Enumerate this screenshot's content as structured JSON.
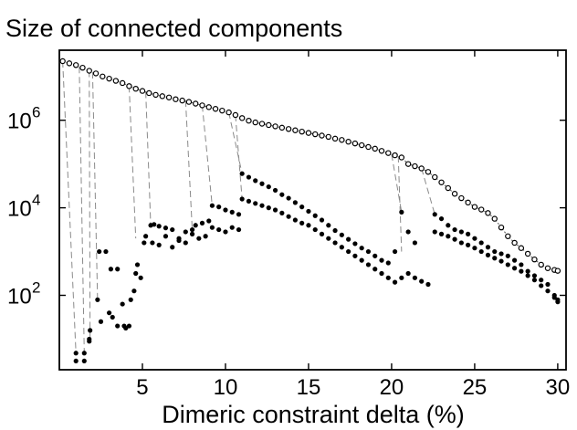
{
  "chart_data": {
    "type": "scatter",
    "title": "Size of connected components",
    "xlabel": "Dimeric constraint delta (%)",
    "ylabel": "",
    "xlim": [
      0,
      30.5
    ],
    "yscale": "log",
    "ylim_log10": [
      0.3,
      7.6
    ],
    "x_ticks": [
      5,
      10,
      15,
      20,
      25,
      30
    ],
    "x_tick_labels": [
      "5",
      "10",
      "15",
      "20",
      "25",
      "30"
    ],
    "y_ticks": [
      {
        "base": "10",
        "exp": "2",
        "log10": 2
      },
      {
        "base": "10",
        "exp": "4",
        "log10": 4
      },
      {
        "base": "10",
        "exp": "6",
        "log10": 6
      }
    ],
    "grid": false,
    "series": [
      {
        "role": "largest",
        "style": "open",
        "points": [
          [
            0.2,
            7.35
          ],
          [
            0.6,
            7.3
          ],
          [
            1.0,
            7.26
          ],
          [
            1.4,
            7.2
          ],
          [
            1.8,
            7.13
          ],
          [
            2.2,
            7.07
          ],
          [
            2.6,
            7.0
          ],
          [
            3.0,
            6.95
          ],
          [
            3.4,
            6.9
          ],
          [
            3.8,
            6.85
          ],
          [
            4.2,
            6.78
          ],
          [
            4.6,
            6.72
          ],
          [
            5.0,
            6.67
          ],
          [
            5.4,
            6.62
          ],
          [
            5.8,
            6.58
          ],
          [
            6.2,
            6.55
          ],
          [
            6.6,
            6.52
          ],
          [
            7.0,
            6.48
          ],
          [
            7.4,
            6.45
          ],
          [
            7.8,
            6.42
          ],
          [
            8.2,
            6.38
          ],
          [
            8.6,
            6.34
          ],
          [
            9.0,
            6.3
          ],
          [
            9.4,
            6.26
          ],
          [
            9.8,
            6.22
          ],
          [
            10.2,
            6.18
          ],
          [
            10.6,
            6.12
          ],
          [
            11.0,
            6.05
          ],
          [
            11.4,
            5.99
          ],
          [
            11.8,
            5.95
          ],
          [
            12.2,
            5.92
          ],
          [
            12.6,
            5.89
          ],
          [
            13.0,
            5.86
          ],
          [
            13.4,
            5.83
          ],
          [
            13.8,
            5.8
          ],
          [
            14.2,
            5.77
          ],
          [
            14.6,
            5.74
          ],
          [
            15.0,
            5.71
          ],
          [
            15.4,
            5.68
          ],
          [
            15.8,
            5.65
          ],
          [
            16.2,
            5.62
          ],
          [
            16.6,
            5.58
          ],
          [
            17.0,
            5.55
          ],
          [
            17.4,
            5.51
          ],
          [
            17.8,
            5.47
          ],
          [
            18.2,
            5.43
          ],
          [
            18.6,
            5.39
          ],
          [
            19.0,
            5.35
          ],
          [
            19.4,
            5.3
          ],
          [
            19.8,
            5.25
          ],
          [
            20.2,
            5.2
          ],
          [
            20.6,
            5.15
          ],
          [
            21.0,
            5.0
          ],
          [
            21.4,
            4.95
          ],
          [
            21.8,
            4.9
          ],
          [
            22.2,
            4.82
          ],
          [
            22.6,
            4.7
          ],
          [
            23.0,
            4.58
          ],
          [
            23.4,
            4.45
          ],
          [
            23.8,
            4.32
          ],
          [
            24.2,
            4.22
          ],
          [
            24.6,
            4.12
          ],
          [
            25.0,
            4.02
          ],
          [
            25.4,
            3.96
          ],
          [
            25.8,
            3.88
          ],
          [
            26.2,
            3.75
          ],
          [
            26.6,
            3.55
          ],
          [
            27.0,
            3.35
          ],
          [
            27.4,
            3.2
          ],
          [
            27.8,
            3.08
          ],
          [
            28.2,
            2.95
          ],
          [
            28.6,
            2.82
          ],
          [
            29.0,
            2.7
          ],
          [
            29.4,
            2.62
          ],
          [
            29.8,
            2.58
          ],
          [
            30.0,
            2.56
          ]
        ]
      },
      {
        "role": "second-largest",
        "style": "filled",
        "points": [
          [
            1.0,
            0.68
          ],
          [
            1.5,
            0.68
          ],
          [
            1.8,
            0.95
          ],
          [
            1.85,
            1.2
          ],
          [
            2.3,
            1.9
          ],
          [
            2.4,
            3.0
          ],
          [
            2.8,
            3.0
          ],
          [
            3.1,
            2.6
          ],
          [
            3.2,
            1.5
          ],
          [
            3.5,
            2.6
          ],
          [
            3.8,
            1.8
          ],
          [
            3.9,
            1.3
          ],
          [
            4.2,
            1.3
          ],
          [
            4.3,
            1.9
          ],
          [
            4.5,
            2.1
          ],
          [
            4.7,
            2.7
          ],
          [
            4.9,
            2.4
          ],
          [
            5.1,
            3.2
          ],
          [
            5.5,
            3.6
          ],
          [
            5.7,
            3.62
          ],
          [
            6.0,
            3.58
          ],
          [
            6.4,
            3.54
          ],
          [
            6.8,
            3.5
          ],
          [
            7.2,
            3.3
          ],
          [
            7.6,
            3.45
          ],
          [
            8.0,
            3.5
          ],
          [
            8.2,
            3.6
          ],
          [
            8.6,
            3.65
          ],
          [
            9.0,
            3.7
          ],
          [
            9.2,
            4.05
          ],
          [
            9.6,
            4.02
          ],
          [
            10.0,
            3.95
          ],
          [
            10.4,
            3.9
          ],
          [
            10.8,
            3.85
          ],
          [
            11.0,
            4.78
          ],
          [
            11.4,
            4.7
          ],
          [
            11.8,
            4.62
          ],
          [
            12.2,
            4.55
          ],
          [
            12.6,
            4.48
          ],
          [
            13.0,
            4.4
          ],
          [
            13.4,
            4.3
          ],
          [
            13.8,
            4.22
          ],
          [
            14.2,
            4.12
          ],
          [
            14.6,
            4.02
          ],
          [
            15.0,
            3.92
          ],
          [
            15.4,
            3.82
          ],
          [
            15.8,
            3.72
          ],
          [
            16.2,
            3.6
          ],
          [
            16.6,
            3.48
          ],
          [
            17.0,
            3.38
          ],
          [
            17.4,
            3.28
          ],
          [
            17.8,
            3.18
          ],
          [
            18.2,
            3.08
          ],
          [
            18.6,
            3.0
          ],
          [
            19.0,
            2.9
          ],
          [
            19.4,
            2.8
          ],
          [
            19.8,
            2.74
          ],
          [
            20.2,
            3.0
          ],
          [
            20.6,
            3.9
          ],
          [
            21.0,
            3.45
          ],
          [
            21.4,
            3.2
          ],
          [
            22.6,
            3.85
          ],
          [
            23.0,
            3.75
          ],
          [
            23.4,
            3.6
          ],
          [
            23.8,
            3.5
          ],
          [
            24.2,
            3.45
          ],
          [
            24.6,
            3.4
          ],
          [
            25.0,
            3.3
          ],
          [
            25.4,
            3.2
          ],
          [
            25.8,
            3.1
          ],
          [
            26.2,
            3.0
          ],
          [
            26.6,
            2.95
          ],
          [
            27.0,
            2.9
          ],
          [
            27.4,
            2.8
          ],
          [
            27.8,
            2.7
          ],
          [
            28.2,
            2.55
          ],
          [
            28.6,
            2.45
          ],
          [
            29.0,
            2.35
          ],
          [
            29.4,
            2.25
          ],
          [
            29.8,
            2.0
          ],
          [
            30.0,
            1.9
          ]
        ]
      },
      {
        "role": "third-largest",
        "style": "filled",
        "points": [
          [
            1.0,
            0.5
          ],
          [
            1.5,
            0.5
          ],
          [
            1.8,
            1.0
          ],
          [
            2.5,
            1.4
          ],
          [
            3.0,
            1.6
          ],
          [
            3.5,
            1.3
          ],
          [
            4.0,
            1.25
          ],
          [
            4.6,
            2.5
          ],
          [
            5.2,
            3.35
          ],
          [
            5.6,
            3.2
          ],
          [
            6.0,
            3.15
          ],
          [
            6.4,
            3.35
          ],
          [
            6.8,
            3.1
          ],
          [
            7.2,
            3.25
          ],
          [
            7.6,
            3.2
          ],
          [
            8.0,
            3.4
          ],
          [
            8.4,
            3.3
          ],
          [
            8.8,
            3.35
          ],
          [
            9.2,
            3.55
          ],
          [
            9.6,
            3.5
          ],
          [
            10.0,
            3.45
          ],
          [
            10.4,
            3.55
          ],
          [
            10.8,
            3.5
          ],
          [
            11.0,
            4.2
          ],
          [
            11.4,
            4.15
          ],
          [
            11.8,
            4.1
          ],
          [
            12.2,
            4.05
          ],
          [
            12.6,
            4.0
          ],
          [
            13.0,
            3.95
          ],
          [
            13.4,
            3.88
          ],
          [
            13.8,
            3.8
          ],
          [
            14.2,
            3.72
          ],
          [
            14.6,
            3.65
          ],
          [
            15.0,
            3.6
          ],
          [
            15.4,
            3.5
          ],
          [
            15.8,
            3.4
          ],
          [
            16.2,
            3.3
          ],
          [
            16.6,
            3.2
          ],
          [
            17.0,
            3.1
          ],
          [
            17.4,
            3.0
          ],
          [
            17.8,
            2.9
          ],
          [
            18.2,
            2.8
          ],
          [
            18.6,
            2.7
          ],
          [
            19.0,
            2.6
          ],
          [
            19.4,
            2.5
          ],
          [
            19.8,
            2.4
          ],
          [
            20.2,
            2.3
          ],
          [
            20.6,
            2.4
          ],
          [
            21.0,
            2.5
          ],
          [
            21.4,
            2.4
          ],
          [
            21.8,
            2.32
          ],
          [
            22.2,
            2.25
          ],
          [
            22.6,
            3.45
          ],
          [
            23.0,
            3.4
          ],
          [
            23.4,
            3.35
          ],
          [
            23.8,
            3.28
          ],
          [
            24.2,
            3.2
          ],
          [
            24.6,
            3.15
          ],
          [
            25.0,
            3.08
          ],
          [
            25.4,
            3.0
          ],
          [
            25.8,
            2.92
          ],
          [
            26.2,
            2.85
          ],
          [
            26.6,
            2.78
          ],
          [
            27.0,
            2.7
          ],
          [
            27.4,
            2.62
          ],
          [
            27.8,
            2.55
          ],
          [
            28.2,
            2.45
          ],
          [
            28.6,
            2.35
          ],
          [
            29.0,
            2.22
          ],
          [
            29.4,
            2.1
          ],
          [
            29.8,
            1.95
          ],
          [
            30.0,
            1.85
          ]
        ]
      }
    ],
    "drop_lines": [
      [
        [
          0.2,
          7.35
        ],
        [
          1.0,
          0.68
        ]
      ],
      [
        [
          1.2,
          7.22
        ],
        [
          1.5,
          0.68
        ]
      ],
      [
        [
          1.8,
          7.13
        ],
        [
          1.85,
          0.95
        ]
      ],
      [
        [
          2.0,
          7.1
        ],
        [
          2.3,
          1.9
        ]
      ],
      [
        [
          4.2,
          6.78
        ],
        [
          4.6,
          3.3
        ]
      ],
      [
        [
          5.2,
          6.65
        ],
        [
          5.5,
          3.6
        ]
      ],
      [
        [
          7.6,
          6.45
        ],
        [
          8.0,
          3.5
        ]
      ],
      [
        [
          8.6,
          6.34
        ],
        [
          9.2,
          4.05
        ]
      ],
      [
        [
          10.2,
          6.18
        ],
        [
          11.0,
          4.78
        ]
      ],
      [
        [
          10.6,
          6.12
        ],
        [
          11.0,
          4.2
        ]
      ],
      [
        [
          20.0,
          5.22
        ],
        [
          20.6,
          3.9
        ]
      ],
      [
        [
          20.4,
          5.18
        ],
        [
          20.6,
          3.0
        ]
      ],
      [
        [
          21.8,
          4.9
        ],
        [
          22.6,
          3.85
        ]
      ]
    ]
  }
}
